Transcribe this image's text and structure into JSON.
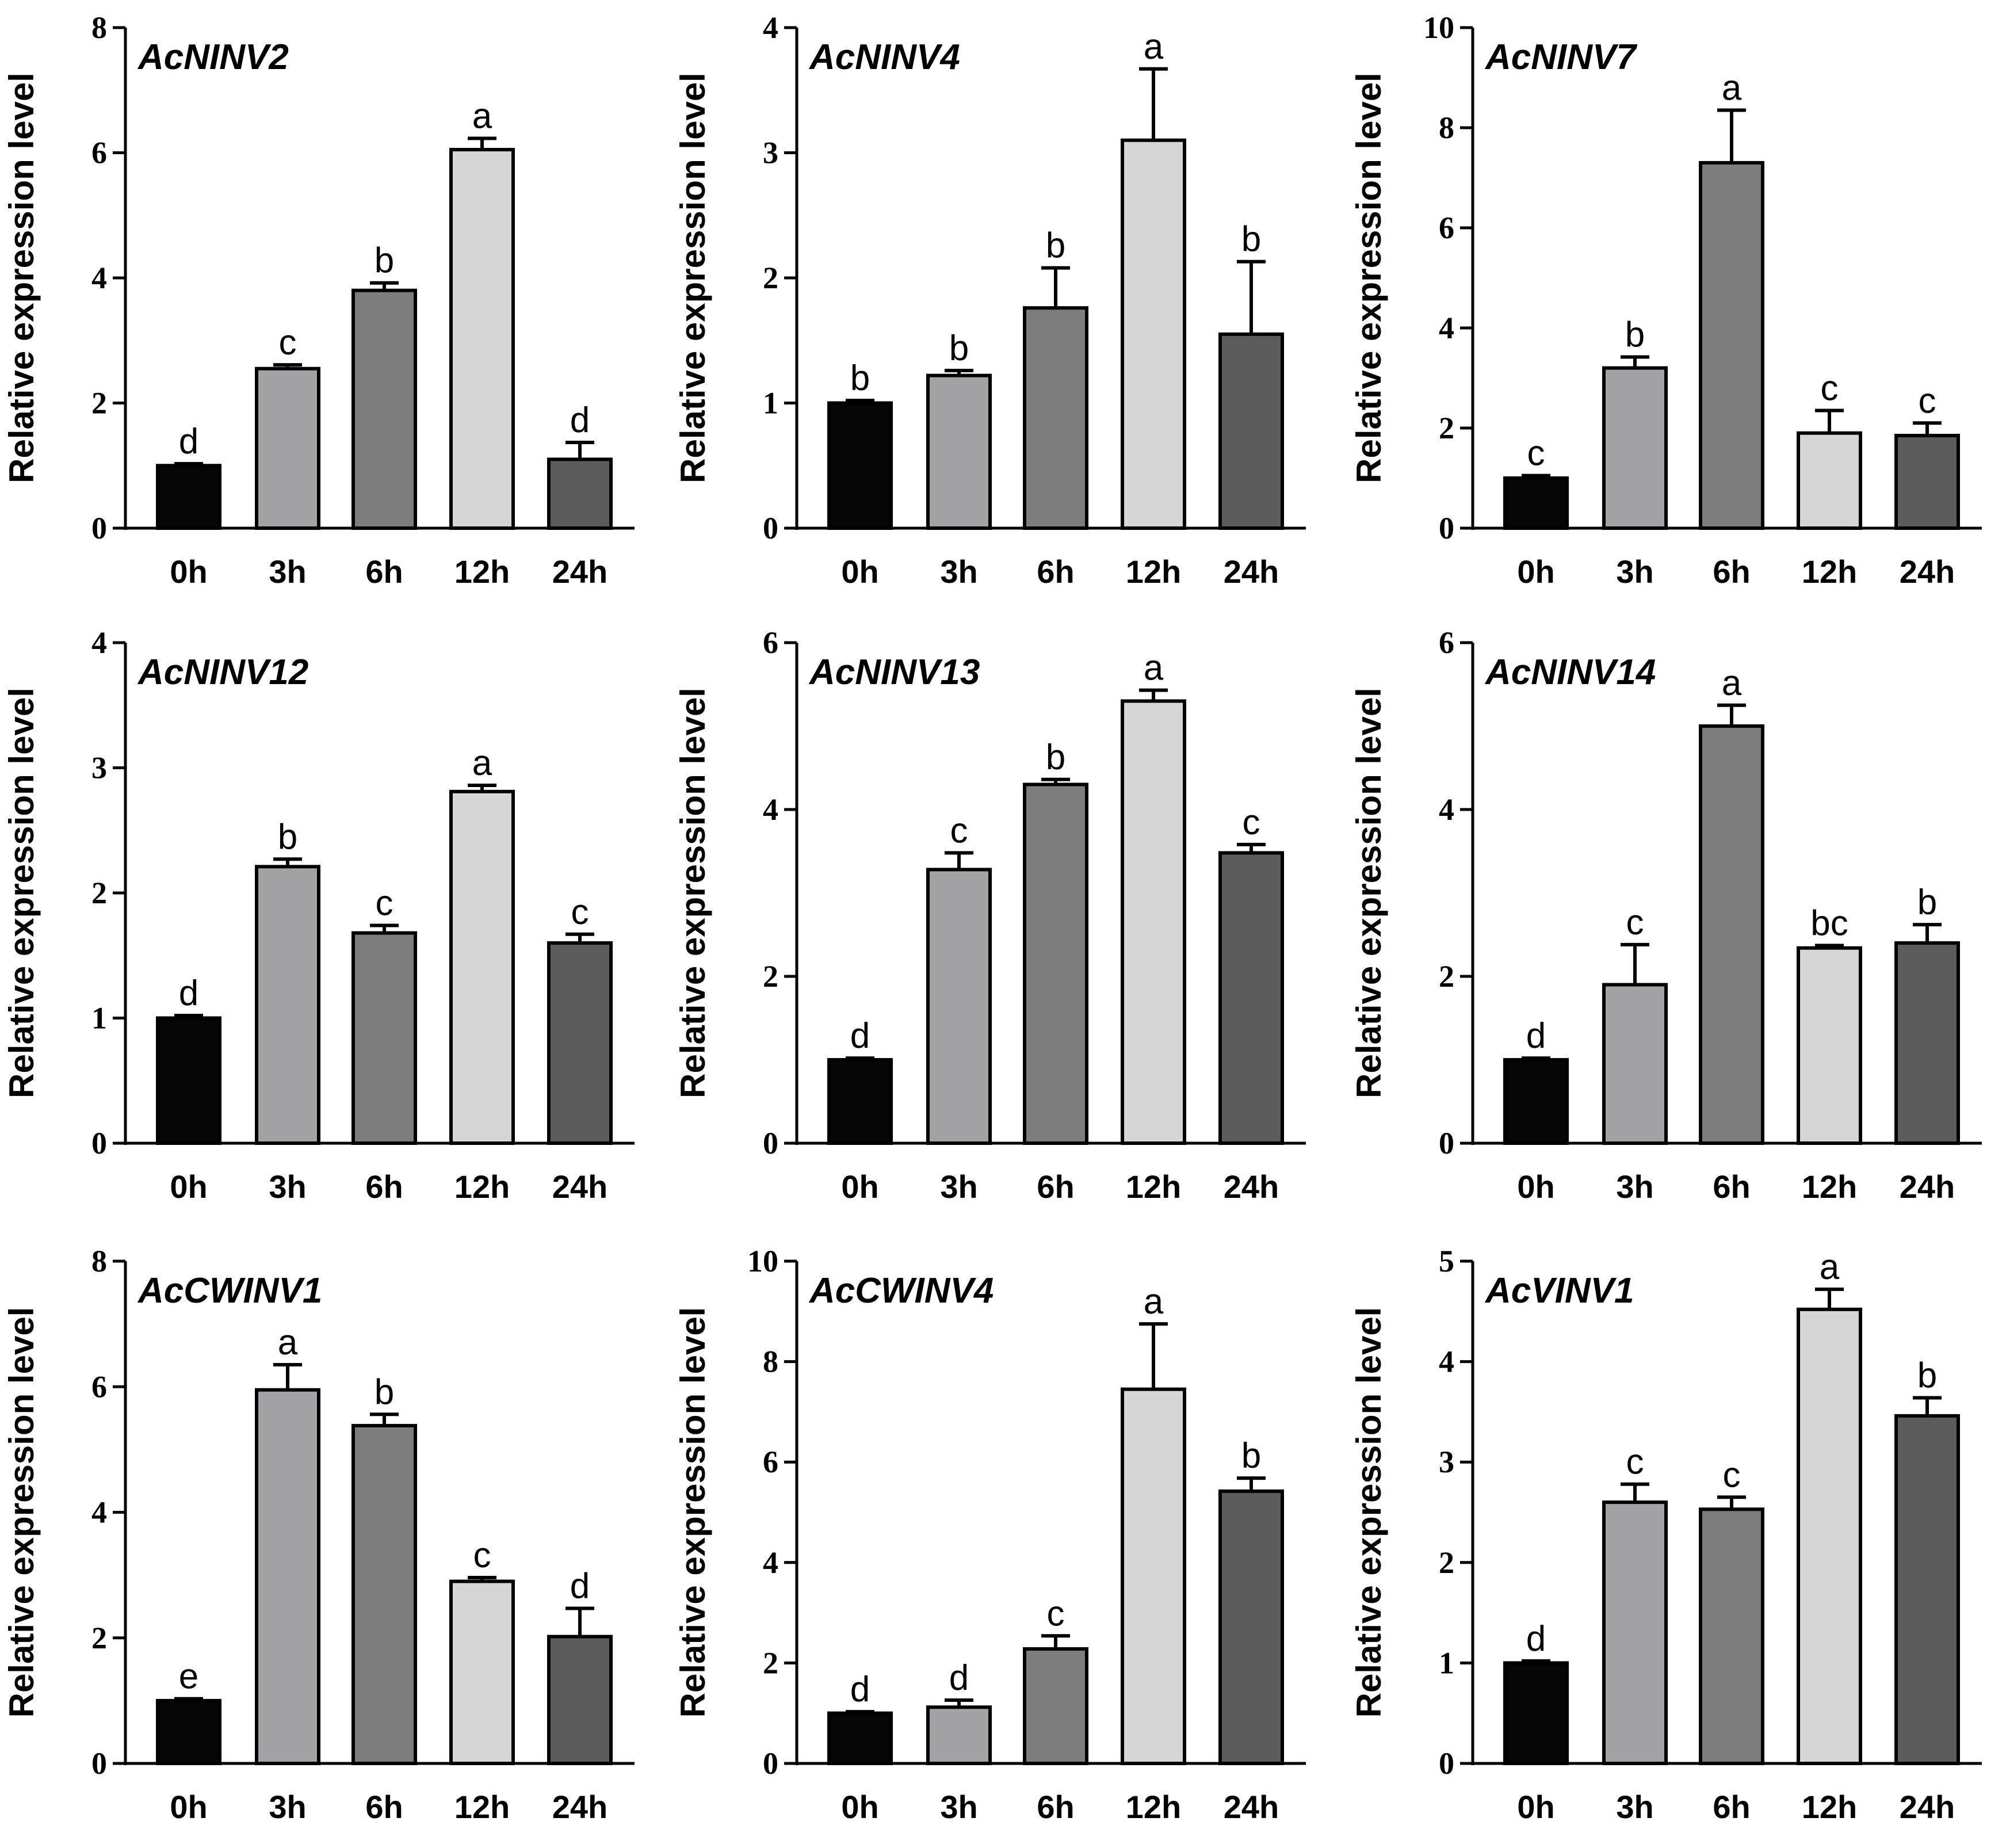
{
  "figure": {
    "y_axis_label": "Relative expression level",
    "colors": {
      "bars": [
        "#050505",
        "#a3a3a7",
        "#7d7d7d",
        "#d6d6d6",
        "#5c5c5c"
      ],
      "edge": "#000000",
      "axis": "#000000"
    }
  },
  "chart_data": [
    {
      "type": "bar",
      "title": "AcNINV2",
      "xlabel": "",
      "ylabel": "Relative expression level",
      "categories": [
        "0h",
        "3h",
        "6h",
        "12h",
        "24h"
      ],
      "values": [
        1.0,
        2.55,
        3.8,
        6.05,
        1.1
      ],
      "errors": [
        0.03,
        0.06,
        0.12,
        0.18,
        0.27
      ],
      "significance": [
        "d",
        "c",
        "b",
        "a",
        "d"
      ],
      "ylim": [
        0,
        8
      ],
      "yticks": [
        0,
        2,
        4,
        6,
        8
      ]
    },
    {
      "type": "bar",
      "title": "AcNINV4",
      "xlabel": "",
      "ylabel": "Relative expression level",
      "categories": [
        "0h",
        "3h",
        "6h",
        "12h",
        "24h"
      ],
      "values": [
        1.0,
        1.22,
        1.76,
        3.1,
        1.55
      ],
      "errors": [
        0.02,
        0.04,
        0.32,
        0.57,
        0.58
      ],
      "significance": [
        "b",
        "b",
        "b",
        "a",
        "b"
      ],
      "ylim": [
        0,
        4
      ],
      "yticks": [
        0,
        1,
        2,
        3,
        4
      ]
    },
    {
      "type": "bar",
      "title": "AcNINV7",
      "xlabel": "",
      "ylabel": "Relative expression level",
      "categories": [
        "0h",
        "3h",
        "6h",
        "12h",
        "24h"
      ],
      "values": [
        1.0,
        3.2,
        7.3,
        1.9,
        1.85
      ],
      "errors": [
        0.05,
        0.22,
        1.05,
        0.45,
        0.25
      ],
      "significance": [
        "c",
        "b",
        "a",
        "c",
        "c"
      ],
      "ylim": [
        0,
        10
      ],
      "yticks": [
        0,
        2,
        4,
        6,
        8,
        10
      ]
    },
    {
      "type": "bar",
      "title": "AcNINV12",
      "xlabel": "",
      "ylabel": "Relative expression level",
      "categories": [
        "0h",
        "3h",
        "6h",
        "12h",
        "24h"
      ],
      "values": [
        1.0,
        2.21,
        1.68,
        2.81,
        1.6
      ],
      "errors": [
        0.02,
        0.06,
        0.06,
        0.05,
        0.07
      ],
      "significance": [
        "d",
        "b",
        "c",
        "a",
        "c"
      ],
      "ylim": [
        0,
        4
      ],
      "yticks": [
        0,
        1,
        2,
        3,
        4
      ]
    },
    {
      "type": "bar",
      "title": "AcNINV13",
      "xlabel": "",
      "ylabel": "Relative expression level",
      "categories": [
        "0h",
        "3h",
        "6h",
        "12h",
        "24h"
      ],
      "values": [
        1.0,
        3.28,
        4.3,
        5.3,
        3.48
      ],
      "errors": [
        0.02,
        0.2,
        0.06,
        0.13,
        0.1
      ],
      "significance": [
        "d",
        "c",
        "b",
        "a",
        "c"
      ],
      "ylim": [
        0,
        6
      ],
      "yticks": [
        0,
        2,
        4,
        6
      ]
    },
    {
      "type": "bar",
      "title": "AcNINV14",
      "xlabel": "",
      "ylabel": "Relative expression level",
      "categories": [
        "0h",
        "3h",
        "6h",
        "12h",
        "24h"
      ],
      "values": [
        1.0,
        1.9,
        5.0,
        2.34,
        2.4
      ],
      "errors": [
        0.02,
        0.48,
        0.25,
        0.03,
        0.22
      ],
      "significance": [
        "d",
        "c",
        "a",
        "bc",
        "b"
      ],
      "ylim": [
        0,
        6
      ],
      "yticks": [
        0,
        2,
        4,
        6
      ]
    },
    {
      "type": "bar",
      "title": "AcCWINV1",
      "xlabel": "",
      "ylabel": "Relative expression level",
      "categories": [
        "0h",
        "3h",
        "6h",
        "12h",
        "24h"
      ],
      "values": [
        1.0,
        5.95,
        5.38,
        2.9,
        2.02
      ],
      "errors": [
        0.03,
        0.4,
        0.18,
        0.06,
        0.45
      ],
      "significance": [
        "e",
        "a",
        "b",
        "c",
        "d"
      ],
      "ylim": [
        0,
        8
      ],
      "yticks": [
        0,
        2,
        4,
        6,
        8
      ]
    },
    {
      "type": "bar",
      "title": "AcCWINV4",
      "xlabel": "",
      "ylabel": "Relative expression level",
      "categories": [
        "0h",
        "3h",
        "6h",
        "12h",
        "24h"
      ],
      "values": [
        1.0,
        1.12,
        2.28,
        7.45,
        5.42
      ],
      "errors": [
        0.03,
        0.14,
        0.26,
        1.3,
        0.26
      ],
      "significance": [
        "d",
        "d",
        "c",
        "a",
        "b"
      ],
      "ylim": [
        0,
        10
      ],
      "yticks": [
        0,
        2,
        4,
        6,
        8,
        10
      ]
    },
    {
      "type": "bar",
      "title": "AcVINV1",
      "xlabel": "",
      "ylabel": "Relative expression level",
      "categories": [
        "0h",
        "3h",
        "6h",
        "12h",
        "24h"
      ],
      "values": [
        1.0,
        2.6,
        2.53,
        4.52,
        3.46
      ],
      "errors": [
        0.02,
        0.18,
        0.12,
        0.2,
        0.18
      ],
      "significance": [
        "d",
        "c",
        "c",
        "a",
        "b"
      ],
      "ylim": [
        0,
        5
      ],
      "yticks": [
        0,
        1,
        2,
        3,
        4,
        5
      ]
    }
  ]
}
